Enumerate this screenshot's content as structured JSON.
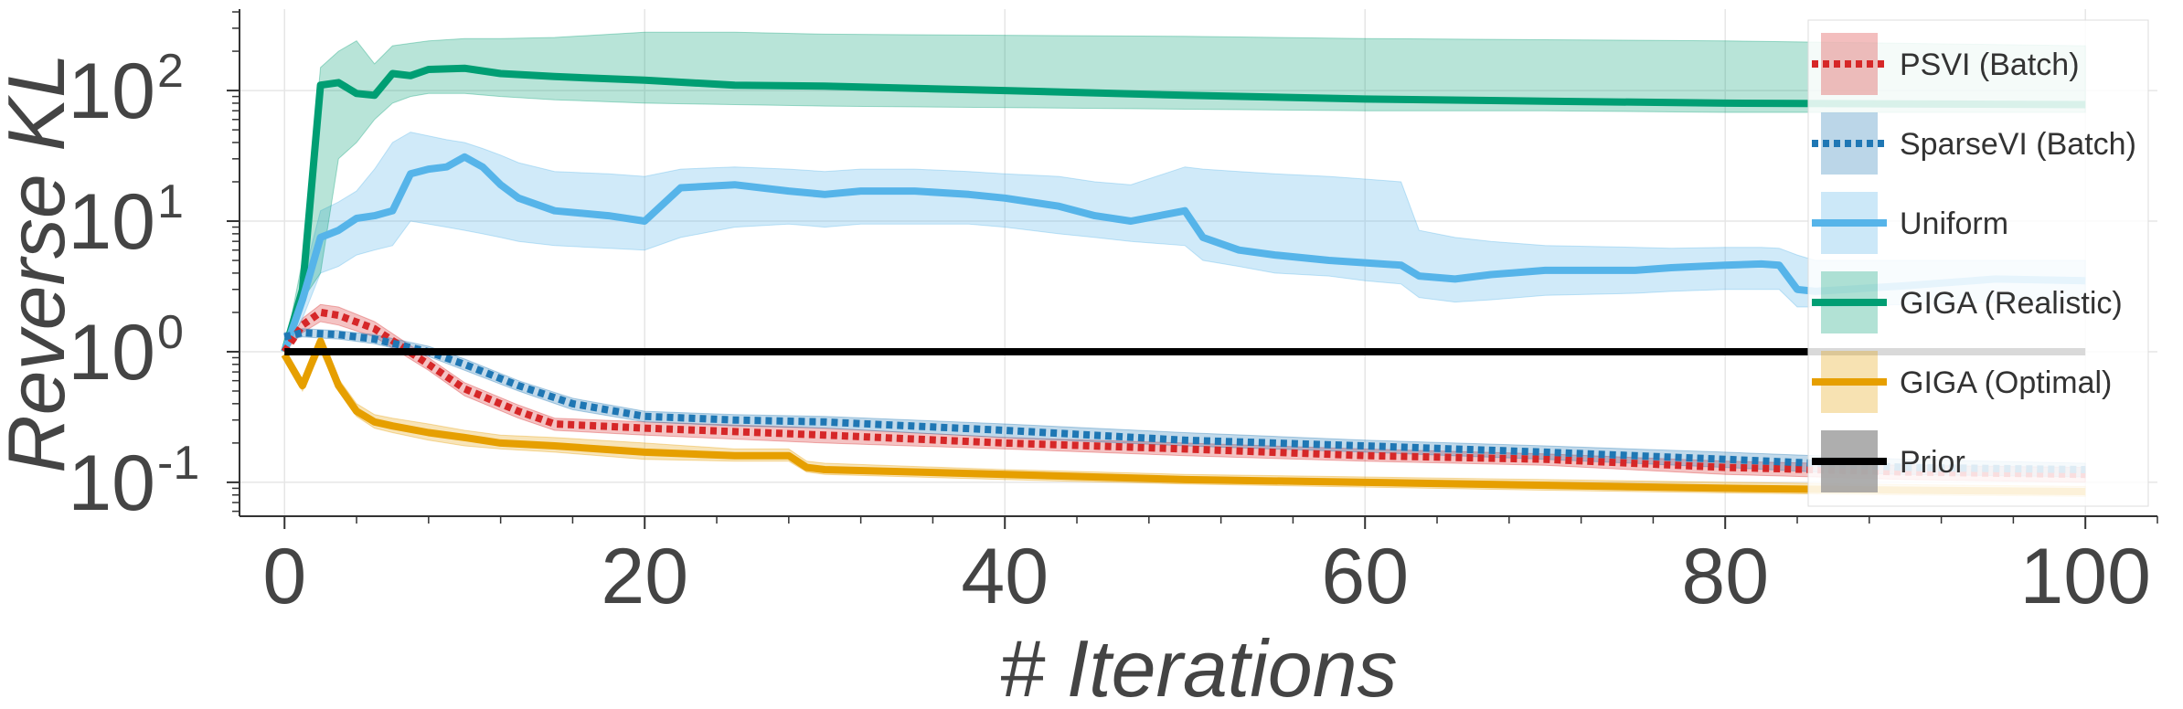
{
  "chart_data": {
    "type": "line",
    "xlabel": "# Iterations",
    "ylabel": "Reverse KL",
    "yscale": "log",
    "xlim": [
      -2.5,
      104
    ],
    "ylim": [
      0.055,
      420
    ],
    "xticks": [
      0,
      20,
      40,
      60,
      80,
      100
    ],
    "yticks": [
      {
        "value": 0.1,
        "base": "10",
        "exp": "-1"
      },
      {
        "value": 1,
        "base": "10",
        "exp": "0"
      },
      {
        "value": 10,
        "base": "10",
        "exp": "1"
      },
      {
        "value": 100,
        "base": "10",
        "exp": "2"
      }
    ],
    "grid": true,
    "legend_position": "right",
    "series": [
      {
        "name": "PSVI (Batch)",
        "color": "#d62728",
        "style": "dotted",
        "x": [
          0,
          1,
          2,
          3,
          5,
          8,
          10,
          13,
          15,
          20,
          30,
          40,
          50,
          60,
          70,
          80,
          85,
          90,
          100
        ],
        "y": [
          1.0,
          1.6,
          2.0,
          1.9,
          1.5,
          0.8,
          0.52,
          0.35,
          0.28,
          0.26,
          0.23,
          0.2,
          0.18,
          0.16,
          0.15,
          0.13,
          0.125,
          0.12,
          0.115
        ],
        "band_lower": [
          1.0,
          1.4,
          1.7,
          1.6,
          1.3,
          0.72,
          0.46,
          0.31,
          0.25,
          0.23,
          0.2,
          0.18,
          0.16,
          0.145,
          0.135,
          0.115,
          0.11,
          0.105,
          0.1
        ],
        "band_upper": [
          1.0,
          1.8,
          2.3,
          2.2,
          1.7,
          0.9,
          0.58,
          0.39,
          0.31,
          0.29,
          0.26,
          0.22,
          0.2,
          0.18,
          0.165,
          0.145,
          0.14,
          0.135,
          0.13
        ]
      },
      {
        "name": "SparseVI (Batch)",
        "color": "#1f77b4",
        "style": "dotted",
        "x": [
          0,
          1,
          3,
          5,
          8,
          10,
          13,
          16,
          20,
          25,
          30,
          40,
          50,
          60,
          70,
          80,
          85,
          90,
          100
        ],
        "y": [
          1.3,
          1.4,
          1.35,
          1.25,
          1.0,
          0.8,
          0.55,
          0.4,
          0.32,
          0.3,
          0.29,
          0.25,
          0.21,
          0.19,
          0.17,
          0.15,
          0.14,
          0.13,
          0.125
        ],
        "band_lower": [
          1.2,
          1.3,
          1.25,
          1.15,
          0.92,
          0.72,
          0.5,
          0.36,
          0.29,
          0.27,
          0.26,
          0.22,
          0.19,
          0.17,
          0.15,
          0.13,
          0.12,
          0.115,
          0.11
        ],
        "band_upper": [
          1.4,
          1.5,
          1.45,
          1.35,
          1.1,
          0.88,
          0.6,
          0.44,
          0.35,
          0.33,
          0.32,
          0.28,
          0.24,
          0.21,
          0.19,
          0.17,
          0.16,
          0.15,
          0.14
        ]
      },
      {
        "name": "Uniform",
        "color": "#56b4e9",
        "style": "solid",
        "x": [
          0,
          1,
          2,
          3,
          4,
          5,
          6,
          7,
          8,
          9,
          10,
          11,
          12,
          13,
          15,
          18,
          20,
          22,
          25,
          28,
          30,
          32,
          35,
          38,
          40,
          43,
          45,
          47,
          50,
          51,
          53,
          55,
          58,
          60,
          62,
          63,
          65,
          67,
          70,
          75,
          77,
          80,
          82,
          83,
          84,
          85,
          90,
          95,
          100
        ],
        "y": [
          1.0,
          2.5,
          7.5,
          8.5,
          10.5,
          11.0,
          12.0,
          23.0,
          25.0,
          26.0,
          31.0,
          26.0,
          19.0,
          15.0,
          12.0,
          11.0,
          10.0,
          18.0,
          19.0,
          17.0,
          16.0,
          17.0,
          17.0,
          16.0,
          15.0,
          13.0,
          11.0,
          10.0,
          12.0,
          7.5,
          6.0,
          5.5,
          5.0,
          4.8,
          4.6,
          3.8,
          3.6,
          3.9,
          4.2,
          4.2,
          4.4,
          4.6,
          4.7,
          4.6,
          3.0,
          2.9,
          3.2,
          3.6,
          3.5
        ],
        "band_lower": [
          1.0,
          1.8,
          4.0,
          4.5,
          5.5,
          6.0,
          6.5,
          10.0,
          9.5,
          9.0,
          8.5,
          8.0,
          7.5,
          7.0,
          6.5,
          6.2,
          6.0,
          7.5,
          9.0,
          9.5,
          9.0,
          9.5,
          9.5,
          9.5,
          9.0,
          8.0,
          7.5,
          7.0,
          6.5,
          5.0,
          4.5,
          4.0,
          3.8,
          3.5,
          3.3,
          2.6,
          2.4,
          2.5,
          2.7,
          2.8,
          2.9,
          3.0,
          3.0,
          3.0,
          2.2,
          2.2,
          2.3,
          2.4,
          2.4
        ],
        "band_upper": [
          1.0,
          3.5,
          12.0,
          14.0,
          17.0,
          25.0,
          40.0,
          48.0,
          45.0,
          42.0,
          40.0,
          36.0,
          32.0,
          28.0,
          24.0,
          23.0,
          22.0,
          25.0,
          26.0,
          25.0,
          24.0,
          25.0,
          25.0,
          24.0,
          23.0,
          22.0,
          20.0,
          19.0,
          26.0,
          25.0,
          24.0,
          23.0,
          22.0,
          21.0,
          20.0,
          8.5,
          7.5,
          7.0,
          6.5,
          6.3,
          6.2,
          6.3,
          6.3,
          6.2,
          5.5,
          5.0,
          5.0,
          5.0,
          5.0
        ]
      },
      {
        "name": "GIGA (Realistic)",
        "color": "#009e73",
        "style": "solid",
        "x": [
          0,
          1,
          2,
          3,
          4,
          5,
          6,
          7,
          8,
          10,
          12,
          15,
          20,
          25,
          30,
          40,
          50,
          60,
          70,
          80,
          90,
          100
        ],
        "y": [
          1.0,
          3.0,
          110.0,
          115.0,
          95.0,
          92.0,
          135.0,
          130.0,
          145.0,
          148.0,
          135.0,
          128.0,
          120.0,
          110.0,
          108.0,
          100.0,
          92.0,
          86.0,
          83.0,
          80.0,
          79.0,
          78.0
        ],
        "band_lower": [
          1.0,
          2.5,
          4.0,
          30.0,
          40.0,
          60.0,
          80.0,
          90.0,
          95.0,
          95.0,
          90.0,
          85.0,
          80.0,
          78.0,
          76.0,
          74.0,
          72.0,
          70.0,
          70.0,
          68.0,
          68.0,
          68.0
        ],
        "band_upper": [
          1.0,
          5.0,
          150.0,
          200.0,
          240.0,
          160.0,
          220.0,
          230.0,
          240.0,
          250.0,
          250.0,
          255.0,
          280.0,
          280.0,
          270.0,
          265.0,
          260.0,
          250.0,
          245.0,
          240.0,
          230.0,
          220.0
        ]
      },
      {
        "name": "GIGA (Optimal)",
        "color": "#e69f00",
        "style": "solid",
        "x": [
          0,
          1,
          2,
          3,
          4,
          5,
          6,
          8,
          10,
          12,
          15,
          20,
          25,
          28,
          29,
          30,
          40,
          50,
          60,
          70,
          80,
          90,
          100
        ],
        "y": [
          0.95,
          0.55,
          1.2,
          0.55,
          0.35,
          0.29,
          0.27,
          0.24,
          0.22,
          0.2,
          0.19,
          0.17,
          0.16,
          0.16,
          0.13,
          0.125,
          0.115,
          0.105,
          0.1,
          0.095,
          0.09,
          0.087,
          0.085
        ],
        "band_lower": [
          0.9,
          0.5,
          1.0,
          0.5,
          0.32,
          0.26,
          0.24,
          0.21,
          0.19,
          0.18,
          0.17,
          0.15,
          0.145,
          0.145,
          0.12,
          0.115,
          0.105,
          0.097,
          0.092,
          0.087,
          0.083,
          0.08,
          0.078
        ],
        "band_upper": [
          1.0,
          0.6,
          1.4,
          0.62,
          0.4,
          0.33,
          0.31,
          0.28,
          0.25,
          0.23,
          0.22,
          0.2,
          0.18,
          0.18,
          0.145,
          0.14,
          0.125,
          0.115,
          0.11,
          0.105,
          0.1,
          0.096,
          0.093
        ]
      },
      {
        "name": "Prior",
        "color": "#000000",
        "style": "solid",
        "x": [
          0,
          100
        ],
        "y": [
          1.0,
          1.0
        ]
      }
    ]
  }
}
